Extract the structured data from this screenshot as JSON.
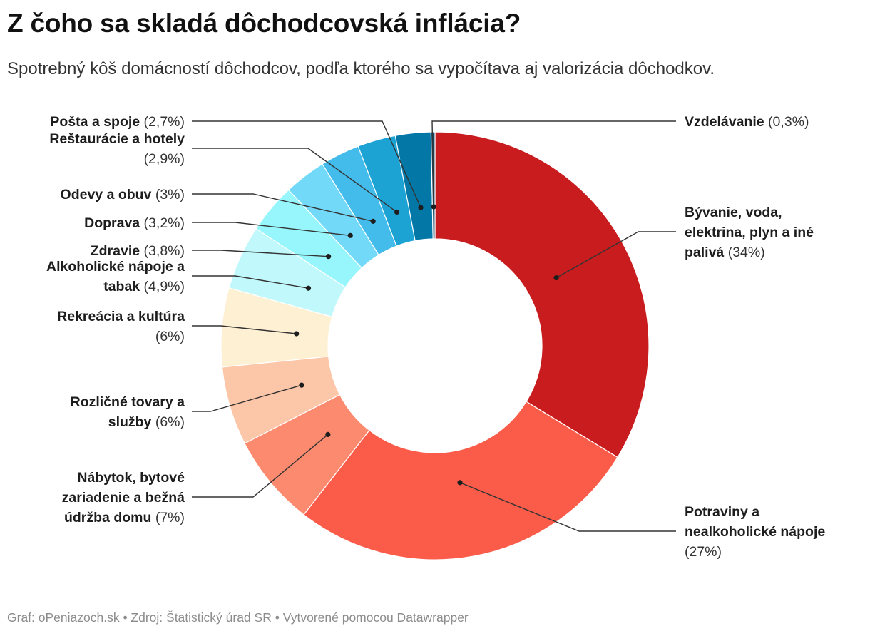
{
  "title": "Z čoho sa skladá dôchodcovská inflácia?",
  "subtitle": "Spotrebný kôš domácností dôchodcov, podľa ktorého sa vypočítava aj valorizácia dôchodkov.",
  "footer": "Graf: oPeniazoch.sk • Zdroj: Štatistický úrad SR • Vytvorené pomocou Datawrapper",
  "chart_data": {
    "type": "pie",
    "variant": "donut",
    "title": "Z čoho sa skladá dôchodcovská inflácia?",
    "unit": "%",
    "slices": [
      {
        "name": "Bývanie, voda, elektrina, plyn a iné palivá",
        "value": 34,
        "value_label": "(34%)",
        "label_lines": [
          "Bývanie, voda,",
          "elektrina, plyn a iné",
          "palivá"
        ],
        "color": "#c81c1f",
        "side": "right"
      },
      {
        "name": "Potraviny a nealkoholické nápoje",
        "value": 27,
        "value_label": "(27%)",
        "label_lines": [
          "Potraviny a",
          "nealkoholické nápoje",
          ""
        ],
        "color": "#fb5c4a",
        "side": "right"
      },
      {
        "name": "Nábytok, bytové zariadenie a bežná údržba domu",
        "value": 7,
        "value_label": "(7%)",
        "label_lines": [
          "Nábytok, bytové",
          "zariadenie a bežná",
          "údržba domu"
        ],
        "color": "#fc8a6e",
        "side": "left"
      },
      {
        "name": "Rozličné tovary a služby",
        "value": 6,
        "value_label": "(6%)",
        "label_lines": [
          "Rozličné tovary a",
          "služby"
        ],
        "color": "#fcc6a8",
        "side": "left"
      },
      {
        "name": "Rekreácia a kultúra",
        "value": 6,
        "value_label": "(6%)",
        "label_lines": [
          "Rekreácia a kultúra",
          ""
        ],
        "color": "#fef0d3",
        "side": "left"
      },
      {
        "name": "Alkoholické nápoje a tabak",
        "value": 4.9,
        "value_label": "(4,9%)",
        "label_lines": [
          "Alkoholické nápoje a",
          "tabak"
        ],
        "color": "#c1f8fb",
        "side": "left"
      },
      {
        "name": "Zdravie",
        "value": 3.8,
        "value_label": "(3,8%)",
        "label_lines": [
          "Zdravie"
        ],
        "color": "#97f6fb",
        "side": "left"
      },
      {
        "name": "Doprava",
        "value": 3.2,
        "value_label": "(3,2%)",
        "label_lines": [
          "Doprava"
        ],
        "color": "#73d9f9",
        "side": "left"
      },
      {
        "name": "Odevy a obuv",
        "value": 3,
        "value_label": "(3%)",
        "label_lines": [
          "Odevy a obuv"
        ],
        "color": "#44bceb",
        "side": "left"
      },
      {
        "name": "Reštaurácie a hotely",
        "value": 2.9,
        "value_label": "(2,9%)",
        "label_lines": [
          "Reštaurácie a hotely",
          ""
        ],
        "color": "#1ca2d3",
        "side": "left"
      },
      {
        "name": "Pošta a spoje",
        "value": 2.7,
        "value_label": "(2,7%)",
        "label_lines": [
          "Pošta a spoje"
        ],
        "color": "#0377a5",
        "side": "left"
      },
      {
        "name": "Vzdelávanie",
        "value": 0.3,
        "value_label": "(0,3%)",
        "label_lines": [
          "Vzdelávanie"
        ],
        "color": "#124a6b",
        "side": "right"
      }
    ]
  }
}
